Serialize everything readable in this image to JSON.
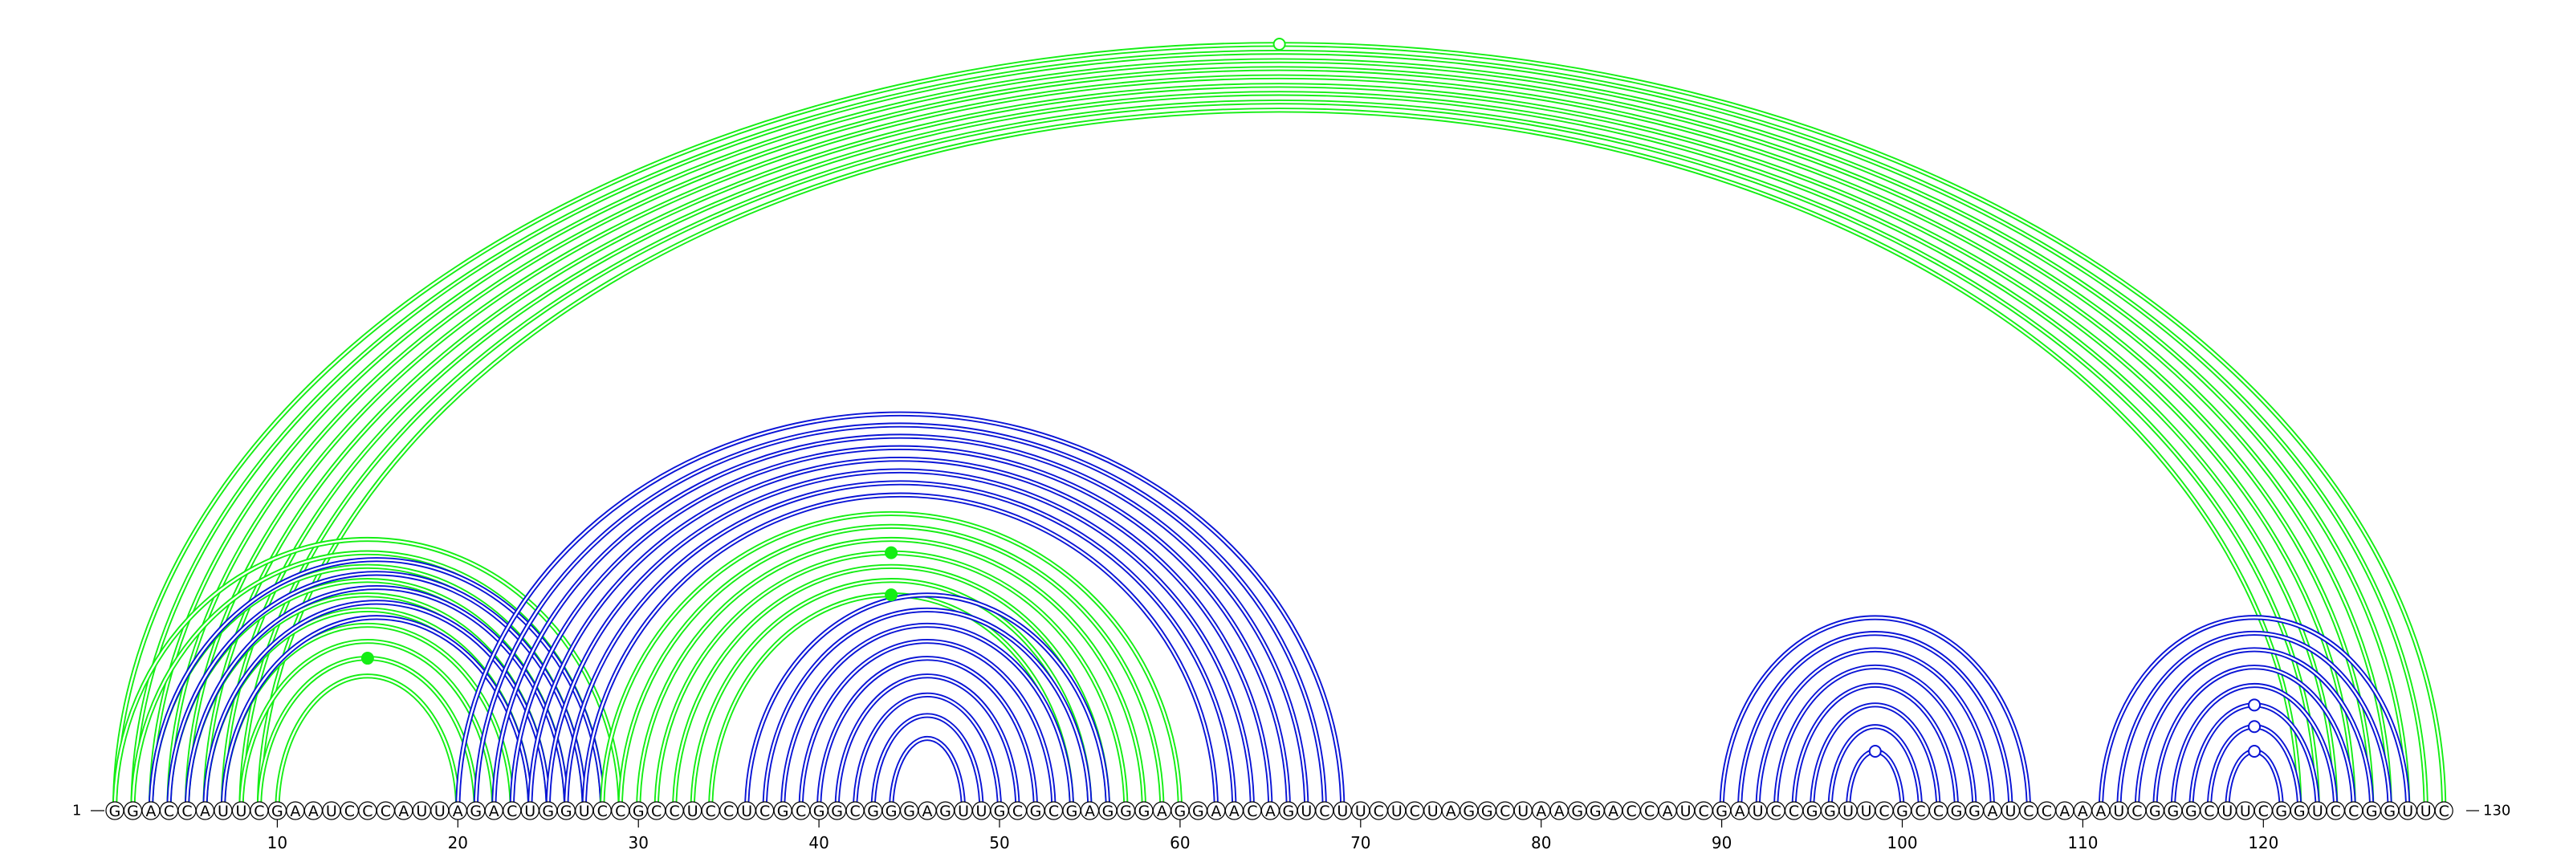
{
  "sequence": "GGACCAUUCGAAUCCCAUUAGACUGGUCCGCCUCCUCGCGGCGGGAGUUGCGCGAGGGAGGAACAGUCUUCUCUAGGCUAAGGACCAUCGAUCCGGUUCGCCGGAUCCAAAUCGGGCUUCGGUCCGGUUC",
  "length": 130,
  "start_label": "1",
  "end_label": "130",
  "tick_labels": [
    "10",
    "20",
    "30",
    "40",
    "50",
    "60",
    "70",
    "80",
    "90",
    "100",
    "110",
    "120"
  ],
  "colors": {
    "blue": "#0a14d6",
    "green": "#14ee14",
    "nucleotide_stroke": "#000000"
  },
  "pair_groups": [
    {
      "color": "green",
      "pairs": [
        [
          1,
          130
        ],
        [
          2,
          129
        ],
        [
          3,
          128
        ],
        [
          4,
          127
        ],
        [
          5,
          126
        ],
        [
          6,
          125
        ],
        [
          7,
          124
        ],
        [
          8,
          123
        ],
        [
          9,
          122
        ]
      ]
    },
    {
      "color": "green",
      "pairs": [
        [
          1,
          29
        ],
        [
          2,
          28
        ],
        [
          3,
          27
        ],
        [
          4,
          26
        ],
        [
          5,
          25
        ],
        [
          6,
          24
        ],
        [
          7,
          23
        ],
        [
          8,
          22
        ],
        [
          9,
          21
        ],
        [
          10,
          20
        ]
      ]
    },
    {
      "color": "blue",
      "pairs": [
        [
          3,
          28
        ],
        [
          4,
          27
        ],
        [
          5,
          26
        ],
        [
          6,
          25
        ],
        [
          7,
          24
        ]
      ]
    },
    {
      "color": "blue",
      "pairs": [
        [
          20,
          69
        ],
        [
          21,
          68
        ],
        [
          22,
          67
        ],
        [
          23,
          66
        ],
        [
          24,
          65
        ],
        [
          25,
          64
        ],
        [
          26,
          63
        ],
        [
          27,
          62
        ]
      ]
    },
    {
      "color": "green",
      "pairs": [
        [
          28,
          60
        ],
        [
          29,
          59
        ],
        [
          30,
          58
        ],
        [
          31,
          57
        ],
        [
          32,
          56
        ],
        [
          33,
          55
        ],
        [
          34,
          54
        ]
      ]
    },
    {
      "color": "blue",
      "pairs": [
        [
          36,
          56
        ],
        [
          37,
          55
        ],
        [
          38,
          54
        ],
        [
          39,
          53
        ],
        [
          40,
          52
        ],
        [
          41,
          51
        ],
        [
          42,
          50
        ],
        [
          43,
          49
        ],
        [
          44,
          48
        ]
      ]
    },
    {
      "color": "blue",
      "pairs": [
        [
          90,
          107
        ],
        [
          91,
          106
        ],
        [
          92,
          105
        ],
        [
          93,
          104
        ],
        [
          94,
          103
        ],
        [
          95,
          102
        ],
        [
          96,
          101
        ],
        [
          97,
          100
        ]
      ]
    },
    {
      "color": "blue",
      "pairs": [
        [
          111,
          128
        ],
        [
          112,
          127
        ],
        [
          113,
          126
        ],
        [
          114,
          125
        ],
        [
          115,
          124
        ],
        [
          116,
          123
        ],
        [
          117,
          122
        ],
        [
          118,
          121
        ]
      ]
    }
  ],
  "markers": [
    {
      "pair": [
        1,
        130
      ],
      "color": "green",
      "style": "open"
    },
    {
      "pair": [
        9,
        21
      ],
      "color": "green",
      "style": "filled"
    },
    {
      "pair": [
        31,
        57
      ],
      "color": "green",
      "style": "filled"
    },
    {
      "pair": [
        34,
        54
      ],
      "color": "green",
      "style": "filled"
    },
    {
      "pair": [
        97,
        100
      ],
      "color": "blue",
      "style": "open"
    },
    {
      "pair": [
        116,
        123
      ],
      "color": "blue",
      "style": "open"
    },
    {
      "pair": [
        117,
        122
      ],
      "color": "blue",
      "style": "open"
    },
    {
      "pair": [
        118,
        121
      ],
      "color": "blue",
      "style": "open"
    }
  ]
}
